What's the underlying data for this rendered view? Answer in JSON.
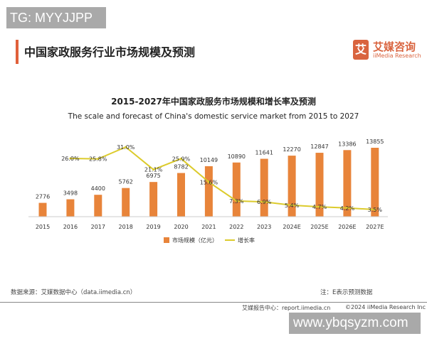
{
  "watermarks": {
    "top": "TG: MYYJJPP",
    "bottom": "www.ybqsyzm.com"
  },
  "header": {
    "title": "中国家政服务行业市场规模及预测",
    "logo_cn": "艾媒咨询",
    "logo_en": "iiMedia Research",
    "logo_mark": "艾"
  },
  "footer": {
    "source": "数据来源：艾媒数据中心（data.iimedia.cn）",
    "note": "注：E表示预测数据",
    "report": "艾媒报告中心：report.iimedia.cn",
    "copyright": "©2024  iiMedia Research  Inc"
  },
  "chart_data": {
    "type": "bar",
    "title": "2015-2027年中国家政服务市场规模和增长率及预测",
    "subtitle": "The scale and forecast of China's domestic service market from 2015 to 2027",
    "categories": [
      "2015",
      "2016",
      "2017",
      "2018",
      "2019",
      "2020",
      "2021",
      "2022",
      "2023",
      "2024E",
      "2025E",
      "2026E",
      "2027E"
    ],
    "series": [
      {
        "name": "市场规模（亿元）",
        "type": "bar",
        "color": "#e8843a",
        "values": [
          2776,
          3498,
          4400,
          5762,
          6975,
          8782,
          10149,
          10890,
          11641,
          12270,
          12847,
          13386,
          13855
        ]
      },
      {
        "name": "增长率",
        "type": "line",
        "color": "#dccb2c",
        "values": [
          null,
          26.0,
          25.8,
          31.0,
          21.1,
          25.9,
          15.6,
          7.3,
          6.9,
          5.4,
          4.7,
          4.2,
          3.5
        ],
        "labels": [
          "",
          "26.0%",
          "25.8%",
          "31.0%",
          "21.1%",
          "25.9%",
          "15.6%",
          "7.3%",
          "6.9%",
          "5.4%",
          "4.7%",
          "4.2%",
          "3.5%"
        ]
      }
    ],
    "legend": "bottom-center",
    "grid": false
  }
}
